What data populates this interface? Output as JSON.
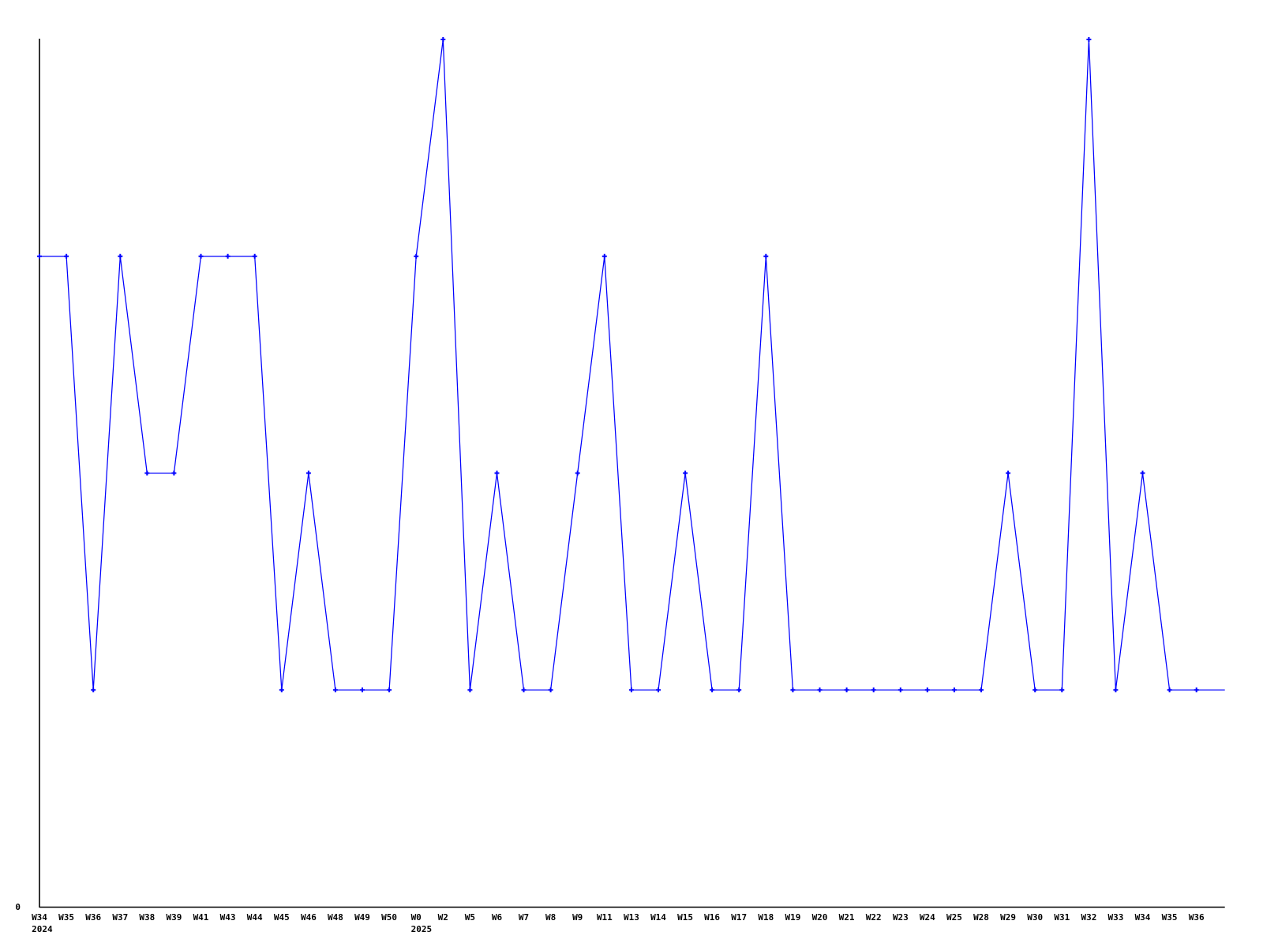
{
  "chart_data": {
    "type": "line",
    "title": "",
    "xlabel": "",
    "ylabel": "",
    "x_labels": [
      "W34",
      "W35",
      "W36",
      "W37",
      "W38",
      "W39",
      "W41",
      "W43",
      "W44",
      "W45",
      "W46",
      "W48",
      "W49",
      "W50",
      "W0",
      "W2",
      "W5",
      "W6",
      "W7",
      "W8",
      "W9",
      "W11",
      "W13",
      "W14",
      "W15",
      "W16",
      "W17",
      "W18",
      "W19",
      "W20",
      "W21",
      "W22",
      "W23",
      "W24",
      "W25",
      "W28",
      "W29",
      "W30",
      "W31",
      "W32",
      "W33",
      "W34",
      "W35",
      "W36"
    ],
    "values": [
      3,
      3,
      1,
      3,
      2,
      2,
      3,
      3,
      3,
      1,
      2,
      1,
      1,
      1,
      3,
      4,
      1,
      2,
      1,
      1,
      2,
      3,
      1,
      1,
      2,
      1,
      1,
      3,
      1,
      1,
      1,
      1,
      1,
      1,
      1,
      1,
      2,
      1,
      1,
      4,
      1,
      2,
      1,
      1
    ],
    "year_rows": [
      {
        "index": 0,
        "year": "2024"
      },
      {
        "index": 14,
        "year": "2025"
      }
    ],
    "ylim": [
      0,
      4
    ],
    "y_tick_labels": [
      "0"
    ],
    "grid": false,
    "legend_position": "none",
    "marker": "plus",
    "trailing_flat_segment": true,
    "colors": {
      "series": "#0000ff",
      "axis": "#000000",
      "text": "#000000",
      "background": "#ffffff"
    }
  }
}
